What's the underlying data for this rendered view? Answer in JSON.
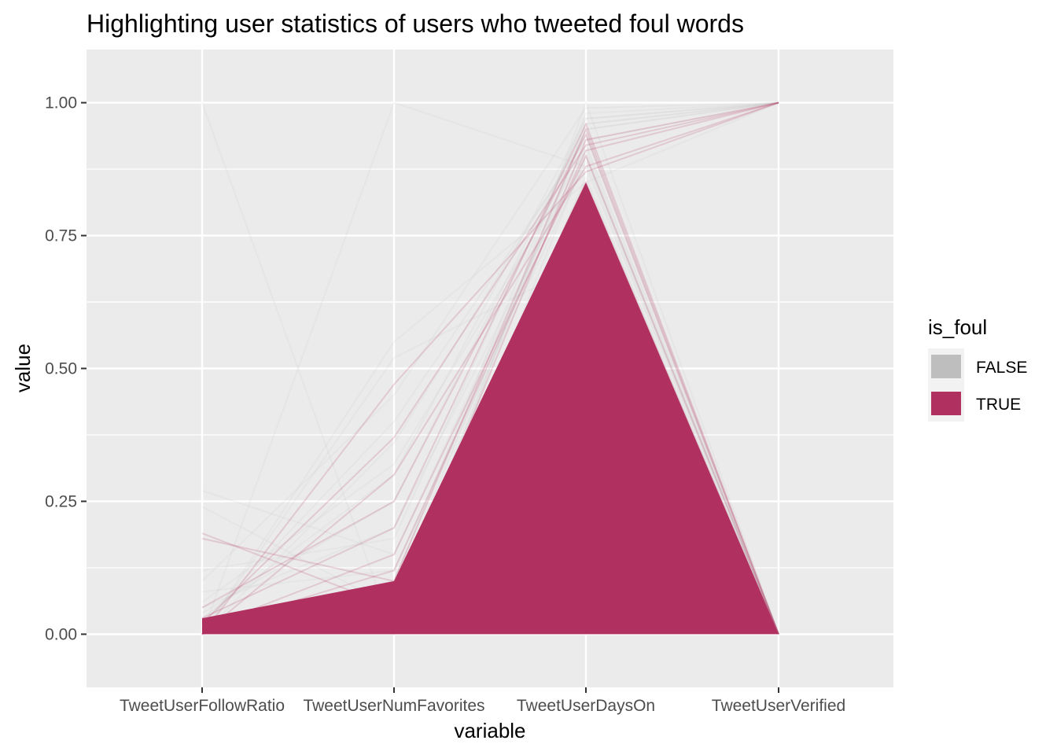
{
  "chart_data": {
    "type": "line",
    "subtype": "parallel-coordinates",
    "title": "Highlighting user statistics of users who tweeted foul words",
    "xlabel": "variable",
    "ylabel": "value",
    "categories": [
      "TweetUserFollowRatio",
      "TweetUserNumFavorites",
      "TweetUserDaysOn",
      "TweetUserVerified"
    ],
    "ylim": [
      -0.1,
      1.1
    ],
    "yticks": [
      0.0,
      0.25,
      0.5,
      0.75,
      1.0
    ],
    "ytick_labels": [
      "0.00",
      "0.25",
      "0.50",
      "0.75",
      "1.00"
    ],
    "grid": true,
    "legend": {
      "title": "is_foul",
      "position": "right",
      "entries": [
        {
          "label": "FALSE",
          "color": "#bebebe"
        },
        {
          "label": "TRUE",
          "color": "#b03060"
        }
      ]
    },
    "series": [
      {
        "name": "FALSE",
        "color": "#bebebe",
        "opacity": 0.12,
        "lines": [
          [
            0.02,
            0.05,
            0.95,
            1.0
          ],
          [
            0.0,
            0.0,
            1.0,
            0.0
          ],
          [
            0.01,
            0.1,
            0.98,
            1.0
          ],
          [
            0.05,
            0.2,
            0.9,
            0.0
          ],
          [
            0.0,
            1.0,
            0.88,
            0.0
          ],
          [
            1.0,
            0.0,
            0.9,
            0.0
          ],
          [
            0.03,
            0.3,
            0.97,
            1.0
          ],
          [
            0.27,
            0.15,
            0.92,
            0.0
          ],
          [
            0.24,
            0.05,
            0.96,
            1.0
          ],
          [
            0.0,
            0.55,
            0.85,
            1.0
          ],
          [
            0.0,
            0.52,
            0.7,
            0.0
          ],
          [
            0.1,
            0.45,
            0.99,
            1.0
          ],
          [
            0.02,
            0.4,
            0.93,
            1.0
          ],
          [
            0.0,
            0.36,
            0.94,
            0.0
          ],
          [
            0.04,
            0.25,
            0.96,
            1.0
          ],
          [
            0.08,
            0.12,
            0.89,
            0.0
          ],
          [
            0.0,
            0.08,
            0.95,
            1.0
          ],
          [
            0.06,
            0.32,
            0.91,
            0.0
          ],
          [
            0.12,
            0.18,
            0.97,
            1.0
          ],
          [
            0.01,
            0.02,
            0.86,
            0.0
          ]
        ]
      },
      {
        "name": "TRUE",
        "color": "#b03060",
        "opacity": 0.18,
        "lines": [
          [
            0.18,
            0.1,
            0.95,
            0.0
          ],
          [
            0.19,
            0.05,
            0.93,
            1.0
          ],
          [
            0.0,
            0.47,
            0.87,
            1.0
          ],
          [
            0.02,
            0.37,
            0.92,
            1.0
          ],
          [
            0.01,
            0.15,
            0.9,
            0.0
          ],
          [
            0.03,
            0.2,
            0.96,
            0.0
          ],
          [
            0.0,
            0.3,
            0.88,
            1.0
          ],
          [
            0.05,
            0.25,
            0.94,
            0.0
          ],
          [
            0.0,
            0.08,
            0.85,
            0.0
          ],
          [
            0.01,
            0.12,
            0.91,
            1.0
          ]
        ]
      }
    ],
    "filled_band": {
      "series": "TRUE",
      "color": "#b03060",
      "upper": [
        0.03,
        0.1,
        0.85,
        0.0
      ],
      "lower": [
        0.0,
        0.0,
        0.0,
        0.0
      ]
    }
  }
}
